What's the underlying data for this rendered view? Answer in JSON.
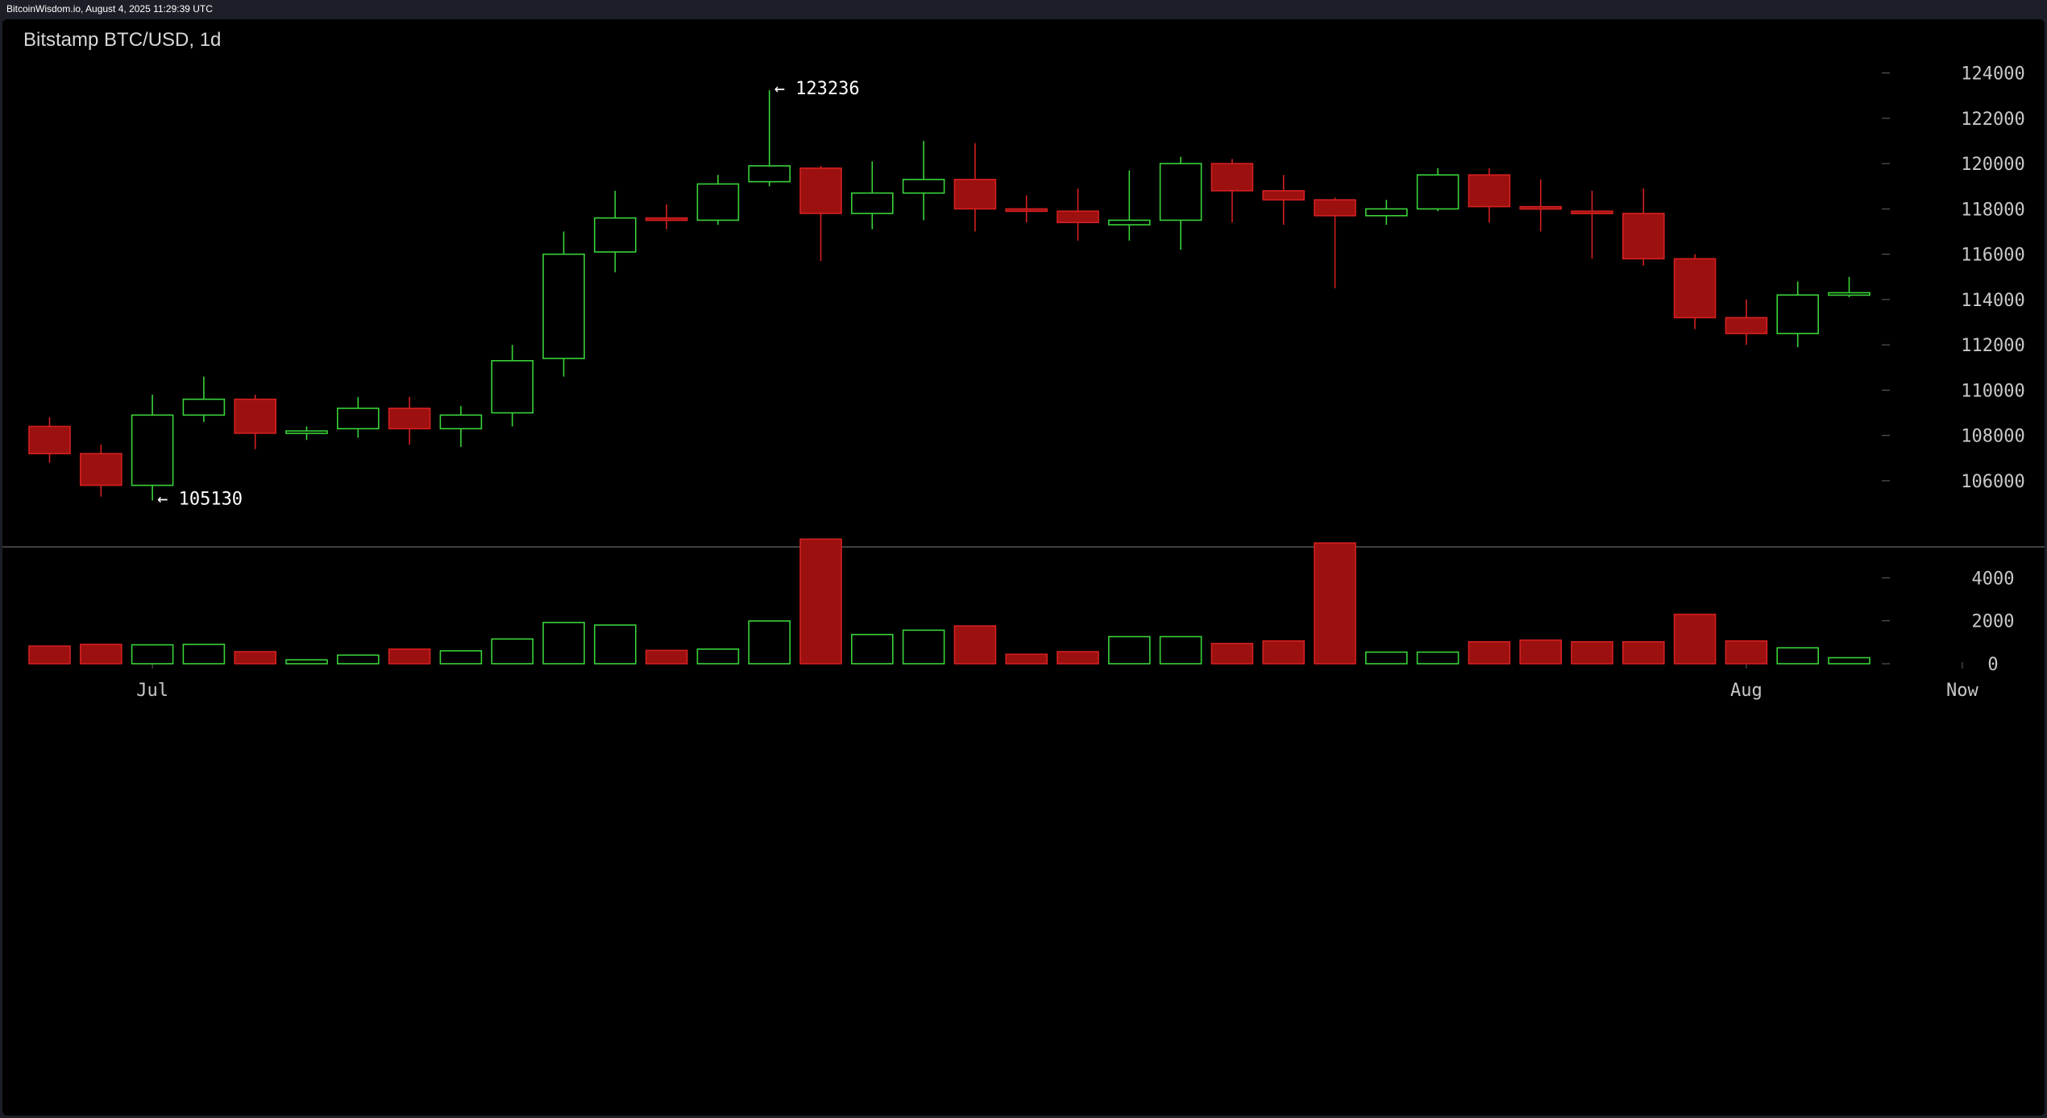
{
  "header": {
    "source_text": "BitcoinWisdom.io, August 4, 2025 11:29:39 UTC"
  },
  "colors": {
    "up": "#39d339",
    "down": "#9c1010",
    "down_stroke": "#d42020",
    "grid_text": "#c8c8c8",
    "background": "#000000"
  },
  "chart_data": {
    "type": "candlestick",
    "title": "Bitstamp BTC/USD, 1d",
    "price_axis": {
      "ticks": [
        "124000",
        "122000",
        "120000",
        "118000",
        "116000",
        "114000",
        "112000",
        "110000",
        "108000",
        "106000"
      ],
      "ylim": [
        103900,
        125300
      ]
    },
    "volume_axis": {
      "ticks": [
        "4000",
        "2000",
        "0"
      ],
      "ylim": [
        0,
        6000
      ]
    },
    "x_labels": [
      {
        "label": "Jul",
        "index": 2
      },
      {
        "label": "Aug",
        "index": 33
      },
      {
        "label": "Now",
        "index": 37.2
      }
    ],
    "annotations": [
      {
        "text": "← 123236",
        "index": 14,
        "value": 123236
      },
      {
        "text": "← 105130",
        "index": 2,
        "value": 105130
      }
    ],
    "candles": [
      {
        "open": 108400,
        "high": 108800,
        "low": 106800,
        "close": 107200,
        "volume": 820
      },
      {
        "open": 107200,
        "high": 107600,
        "low": 105300,
        "close": 105800,
        "volume": 900
      },
      {
        "open": 105800,
        "high": 109800,
        "low": 105130,
        "close": 108900,
        "volume": 880
      },
      {
        "open": 108900,
        "high": 110600,
        "low": 108600,
        "close": 109600,
        "volume": 900
      },
      {
        "open": 109600,
        "high": 109800,
        "low": 107400,
        "close": 108100,
        "volume": 560
      },
      {
        "open": 108100,
        "high": 108400,
        "low": 107800,
        "close": 108200,
        "volume": 180
      },
      {
        "open": 108300,
        "high": 109700,
        "low": 107900,
        "close": 109200,
        "volume": 400
      },
      {
        "open": 109200,
        "high": 109700,
        "low": 107600,
        "close": 108300,
        "volume": 680
      },
      {
        "open": 108300,
        "high": 109300,
        "low": 107500,
        "close": 108900,
        "volume": 600
      },
      {
        "open": 109000,
        "high": 112000,
        "low": 108400,
        "close": 111300,
        "volume": 1150
      },
      {
        "open": 111400,
        "high": 117000,
        "low": 110600,
        "close": 116000,
        "volume": 1920
      },
      {
        "open": 116100,
        "high": 118800,
        "low": 115200,
        "close": 117600,
        "volume": 1800
      },
      {
        "open": 117600,
        "high": 118200,
        "low": 117100,
        "close": 117500,
        "volume": 620
      },
      {
        "open": 117500,
        "high": 119500,
        "low": 117300,
        "close": 119100,
        "volume": 680
      },
      {
        "open": 119200,
        "high": 123236,
        "low": 119000,
        "close": 119900,
        "volume": 1990
      },
      {
        "open": 119800,
        "high": 119900,
        "low": 115700,
        "close": 117800,
        "volume": 5800
      },
      {
        "open": 117800,
        "high": 120100,
        "low": 117100,
        "close": 118700,
        "volume": 1360
      },
      {
        "open": 118700,
        "high": 121000,
        "low": 117500,
        "close": 119300,
        "volume": 1560
      },
      {
        "open": 119300,
        "high": 120900,
        "low": 117000,
        "close": 118000,
        "volume": 1760
      },
      {
        "open": 118000,
        "high": 118600,
        "low": 117400,
        "close": 117900,
        "volume": 440
      },
      {
        "open": 117900,
        "high": 118900,
        "low": 116600,
        "close": 117400,
        "volume": 560
      },
      {
        "open": 117300,
        "high": 119700,
        "low": 116600,
        "close": 117500,
        "volume": 1260
      },
      {
        "open": 117500,
        "high": 120300,
        "low": 116200,
        "close": 120000,
        "volume": 1260
      },
      {
        "open": 120000,
        "high": 120200,
        "low": 117400,
        "close": 118800,
        "volume": 940
      },
      {
        "open": 118800,
        "high": 119500,
        "low": 117300,
        "close": 118400,
        "volume": 1060
      },
      {
        "open": 118400,
        "high": 118500,
        "low": 114500,
        "close": 117700,
        "volume": 5620
      },
      {
        "open": 117700,
        "high": 118400,
        "low": 117300,
        "close": 118000,
        "volume": 540
      },
      {
        "open": 118000,
        "high": 119800,
        "low": 117900,
        "close": 119500,
        "volume": 540
      },
      {
        "open": 119500,
        "high": 119800,
        "low": 117400,
        "close": 118100,
        "volume": 1020
      },
      {
        "open": 118100,
        "high": 119300,
        "low": 117000,
        "close": 118000,
        "volume": 1100
      },
      {
        "open": 117900,
        "high": 118800,
        "low": 115800,
        "close": 117800,
        "volume": 1020
      },
      {
        "open": 117800,
        "high": 118900,
        "low": 115500,
        "close": 115800,
        "volume": 1020
      },
      {
        "open": 115800,
        "high": 116000,
        "low": 112700,
        "close": 113200,
        "volume": 2300
      },
      {
        "open": 113200,
        "high": 114000,
        "low": 112000,
        "close": 112500,
        "volume": 1060
      },
      {
        "open": 112500,
        "high": 114800,
        "low": 111900,
        "close": 114200,
        "volume": 740
      },
      {
        "open": 114200,
        "high": 115000,
        "low": 114100,
        "close": 114300,
        "volume": 280
      }
    ]
  }
}
